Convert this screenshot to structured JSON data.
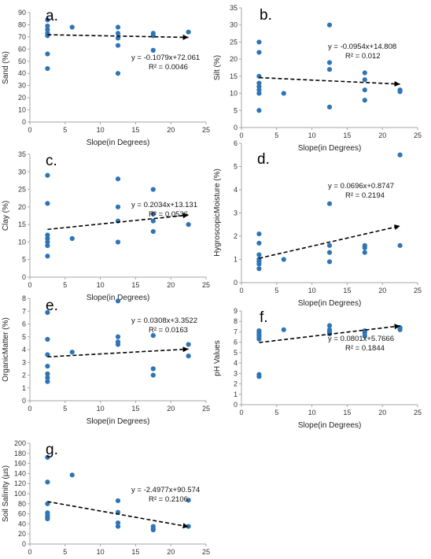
{
  "chart_data": [
    {
      "type": "scatter",
      "panel_label": "a.",
      "xlabel": "Slope(in Degrees)",
      "ylabel": "Sand (%)",
      "xlim": [
        0,
        25
      ],
      "ylim": [
        0,
        90
      ],
      "x_ticks": [
        0,
        5,
        10,
        15,
        20,
        25
      ],
      "y_ticks": [
        0,
        10,
        20,
        30,
        40,
        50,
        60,
        70,
        80,
        90
      ],
      "x": [
        2.5,
        2.5,
        2.5,
        2.5,
        2.5,
        2.5,
        2.5,
        6,
        12.5,
        12.5,
        12.5,
        12.5,
        12.5,
        17.5,
        17.5,
        17.5,
        22.5
      ],
      "y": [
        84,
        79,
        76,
        73,
        71,
        56,
        44,
        78,
        78,
        73,
        69,
        63,
        40,
        73,
        71,
        59,
        74
      ],
      "trendline": {
        "x": [
          2.5,
          22.5
        ],
        "y": [
          71.8,
          69.6
        ]
      },
      "equation": "y = -0.1079x+72.061",
      "r2": "R² = 0.0046",
      "grid": false
    },
    {
      "type": "scatter",
      "panel_label": "b.",
      "xlabel": "Slope(in Degrees)",
      "ylabel": "Silt (%)",
      "xlim": [
        0,
        25
      ],
      "ylim": [
        0,
        35
      ],
      "x_ticks": [
        0,
        5,
        10,
        15,
        20,
        25
      ],
      "y_ticks": [
        0,
        5,
        10,
        15,
        20,
        25,
        30,
        35
      ],
      "x": [
        2.5,
        2.5,
        2.5,
        2.5,
        2.5,
        2.5,
        2.5,
        2.5,
        6,
        12.5,
        12.5,
        12.5,
        12.5,
        17.5,
        17.5,
        17.5,
        17.5,
        22.5,
        22.5
      ],
      "y": [
        25,
        22,
        15,
        13,
        12,
        11,
        10,
        5,
        10,
        30,
        19,
        17,
        6,
        16,
        14,
        11,
        8,
        11,
        10.5
      ],
      "trendline": {
        "x": [
          2.5,
          22.5
        ],
        "y": [
          14.6,
          12.7
        ]
      },
      "equation": "y = -0.0954x+14.808",
      "r2": "R² = 0.012",
      "grid": false
    },
    {
      "type": "scatter",
      "panel_label": "c.",
      "xlabel": "Slope(in Degrees)",
      "ylabel": "Clay (%)",
      "xlim": [
        0,
        25
      ],
      "ylim": [
        0,
        35
      ],
      "x_ticks": [
        0,
        5,
        10,
        15,
        20,
        25
      ],
      "y_ticks": [
        0,
        5,
        10,
        15,
        20,
        25,
        30,
        35
      ],
      "x": [
        2.5,
        2.5,
        2.5,
        2.5,
        2.5,
        2.5,
        2.5,
        6,
        12.5,
        12.5,
        12.5,
        12.5,
        17.5,
        17.5,
        17.5,
        17.5,
        22.5
      ],
      "y": [
        29,
        21,
        12,
        11,
        10,
        9,
        6,
        11,
        28,
        20,
        16,
        10,
        25,
        18,
        16,
        13,
        15
      ],
      "trendline": {
        "x": [
          2.5,
          22.5
        ],
        "y": [
          13.6,
          17.7
        ]
      },
      "equation": "y = 0.2034x+13.131",
      "r2": "R² = 0.0536",
      "grid": false
    },
    {
      "type": "scatter",
      "panel_label": "d.",
      "xlabel": "Slope(in Degrees)",
      "ylabel": "HygroscopicMoisture (%)",
      "xlim": [
        0,
        25
      ],
      "ylim": [
        0,
        6
      ],
      "x_ticks": [
        0,
        5,
        10,
        15,
        20,
        25
      ],
      "y_ticks": [
        0,
        1,
        2,
        3,
        4,
        5,
        6
      ],
      "x": [
        2.5,
        2.5,
        2.5,
        2.5,
        2.5,
        2.5,
        2.5,
        6,
        12.5,
        12.5,
        12.5,
        12.5,
        17.5,
        17.5,
        17.5,
        22.5,
        22.5
      ],
      "y": [
        2.1,
        1.7,
        1.2,
        1.0,
        0.9,
        0.8,
        0.6,
        1.0,
        3.4,
        1.6,
        1.3,
        0.9,
        1.6,
        1.5,
        1.3,
        5.5,
        1.6
      ],
      "trendline": {
        "x": [
          2.5,
          22.5
        ],
        "y": [
          1.05,
          2.44
        ]
      },
      "equation": "y = 0.0696x+0.8747",
      "r2": "R² = 0.2194",
      "grid": false
    },
    {
      "type": "scatter",
      "panel_label": "e.",
      "xlabel": "Slope(in Degrees)",
      "ylabel": "OrganicMatter (%)",
      "xlim": [
        0,
        25
      ],
      "ylim": [
        0,
        8
      ],
      "x_ticks": [
        0,
        5,
        10,
        15,
        20,
        25
      ],
      "y_ticks": [
        0,
        1,
        2,
        3,
        4,
        5,
        6,
        7,
        8
      ],
      "x": [
        2.5,
        2.5,
        2.5,
        2.5,
        2.5,
        2.5,
        2.5,
        6,
        12.5,
        12.5,
        12.5,
        12.5,
        17.5,
        17.5,
        17.5,
        22.5,
        22.5
      ],
      "y": [
        6.9,
        4.8,
        3.6,
        2.7,
        2.1,
        1.8,
        1.5,
        3.8,
        7.8,
        5.0,
        4.6,
        4.4,
        5.1,
        2.5,
        2.0,
        4.4,
        3.5
      ],
      "trendline": {
        "x": [
          2.5,
          22.5
        ],
        "y": [
          3.43,
          4.04
        ]
      },
      "equation": "y = 0.0308x+3.3522",
      "r2": "R² = 0.0163",
      "grid": false
    },
    {
      "type": "scatter",
      "panel_label": "f.",
      "xlabel": "Slope(in Degrees)",
      "ylabel": "pH Values",
      "xlim": [
        0,
        25
      ],
      "ylim": [
        0,
        9
      ],
      "x_ticks": [
        0,
        5,
        10,
        15,
        20,
        25
      ],
      "y_ticks": [
        0,
        1,
        2,
        3,
        4,
        5,
        6,
        7,
        8,
        9
      ],
      "x": [
        2.5,
        2.5,
        2.5,
        2.5,
        2.5,
        2.5,
        2.5,
        6,
        12.5,
        12.5,
        12.5,
        12.5,
        17.5,
        17.5,
        17.5,
        22.5,
        22.5
      ],
      "y": [
        7.1,
        6.9,
        6.7,
        6.5,
        6.3,
        2.9,
        2.7,
        7.2,
        7.6,
        7.2,
        7.0,
        6.8,
        7.1,
        6.9,
        6.6,
        7.4,
        7.2
      ],
      "trendline": {
        "x": [
          2.5,
          22.5
        ],
        "y": [
          5.97,
          7.57
        ]
      },
      "equation": "y = 0.0801x+5.7666",
      "r2": "R² = 0.1844",
      "grid": false
    },
    {
      "type": "scatter",
      "panel_label": "g.",
      "xlabel": "Slope(in Degrees)",
      "ylabel": "Soil Salinity (µs)",
      "xlim": [
        0,
        25
      ],
      "ylim": [
        0,
        200
      ],
      "x_ticks": [
        0,
        5,
        10,
        15,
        20,
        25
      ],
      "y_ticks": [
        0,
        20,
        40,
        60,
        80,
        100,
        120,
        140,
        160,
        180,
        200
      ],
      "x": [
        2.5,
        2.5,
        2.5,
        2.5,
        2.5,
        2.5,
        2.5,
        6,
        12.5,
        12.5,
        12.5,
        12.5,
        17.5,
        17.5,
        17.5,
        22.5,
        22.5
      ],
      "y": [
        172,
        123,
        80,
        62,
        57,
        53,
        50,
        137,
        86,
        63,
        42,
        35,
        35,
        30,
        28,
        87,
        35
      ],
      "trendline": {
        "x": [
          2.5,
          22.5
        ],
        "y": [
          84.3,
          34.4
        ]
      },
      "equation": "y = -2.4977x+90.574",
      "r2": "R² = 0.2106",
      "grid": false
    }
  ],
  "colors": {
    "points": "#2e75b6",
    "trendline": "#000000",
    "axis": "#a6a6a6"
  }
}
